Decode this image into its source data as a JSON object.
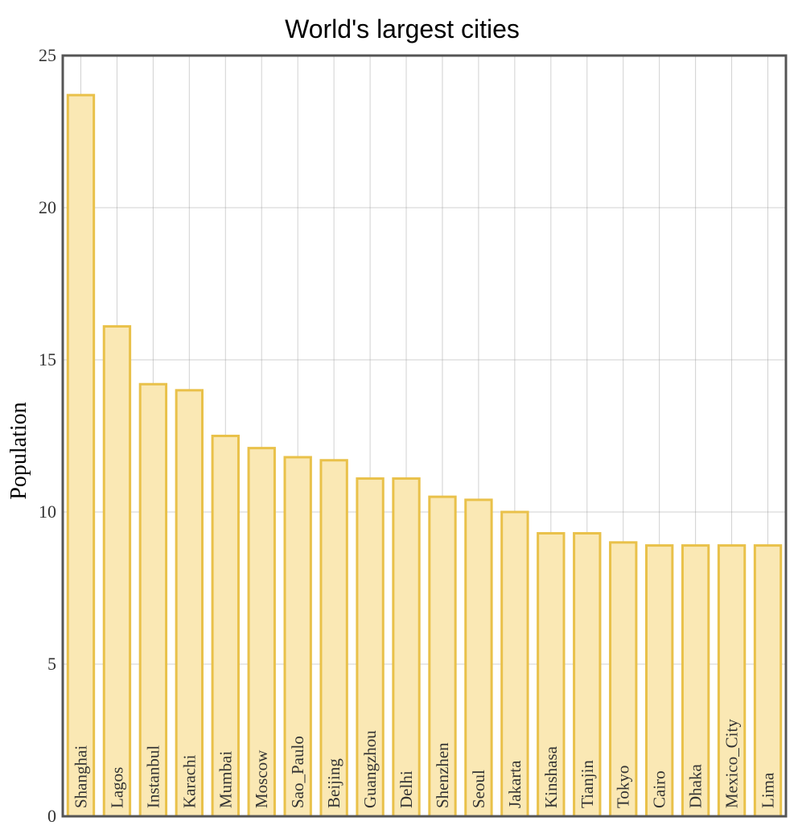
{
  "chart_data": {
    "type": "bar",
    "title": "World's largest cities",
    "xlabel": "",
    "ylabel": "Population",
    "ylim": [
      0,
      25
    ],
    "yticks": [
      0,
      5,
      10,
      15,
      20,
      25
    ],
    "grid": true,
    "categories": [
      "Shanghai",
      "Lagos",
      "Instanbul",
      "Karachi",
      "Mumbai",
      "Moscow",
      "Sao_Paulo",
      "Beijing",
      "Guangzhou",
      "Delhi",
      "Shenzhen",
      "Seoul",
      "Jakarta",
      "Kinshasa",
      "Tianjin",
      "Tokyo",
      "Cairo",
      "Dhaka",
      "Mexico_City",
      "Lima"
    ],
    "series": [
      {
        "values": [
          23.7,
          16.1,
          14.2,
          14.0,
          12.5,
          12.1,
          11.8,
          11.7,
          11.1,
          11.1,
          10.5,
          10.4,
          10.0,
          9.3,
          9.3,
          9.0,
          8.9,
          8.9,
          8.9,
          8.9
        ]
      }
    ],
    "colors": {
      "bar_fill": "#fae8b4",
      "bar_stroke": "#e9c14a",
      "frame": "#555555"
    }
  }
}
